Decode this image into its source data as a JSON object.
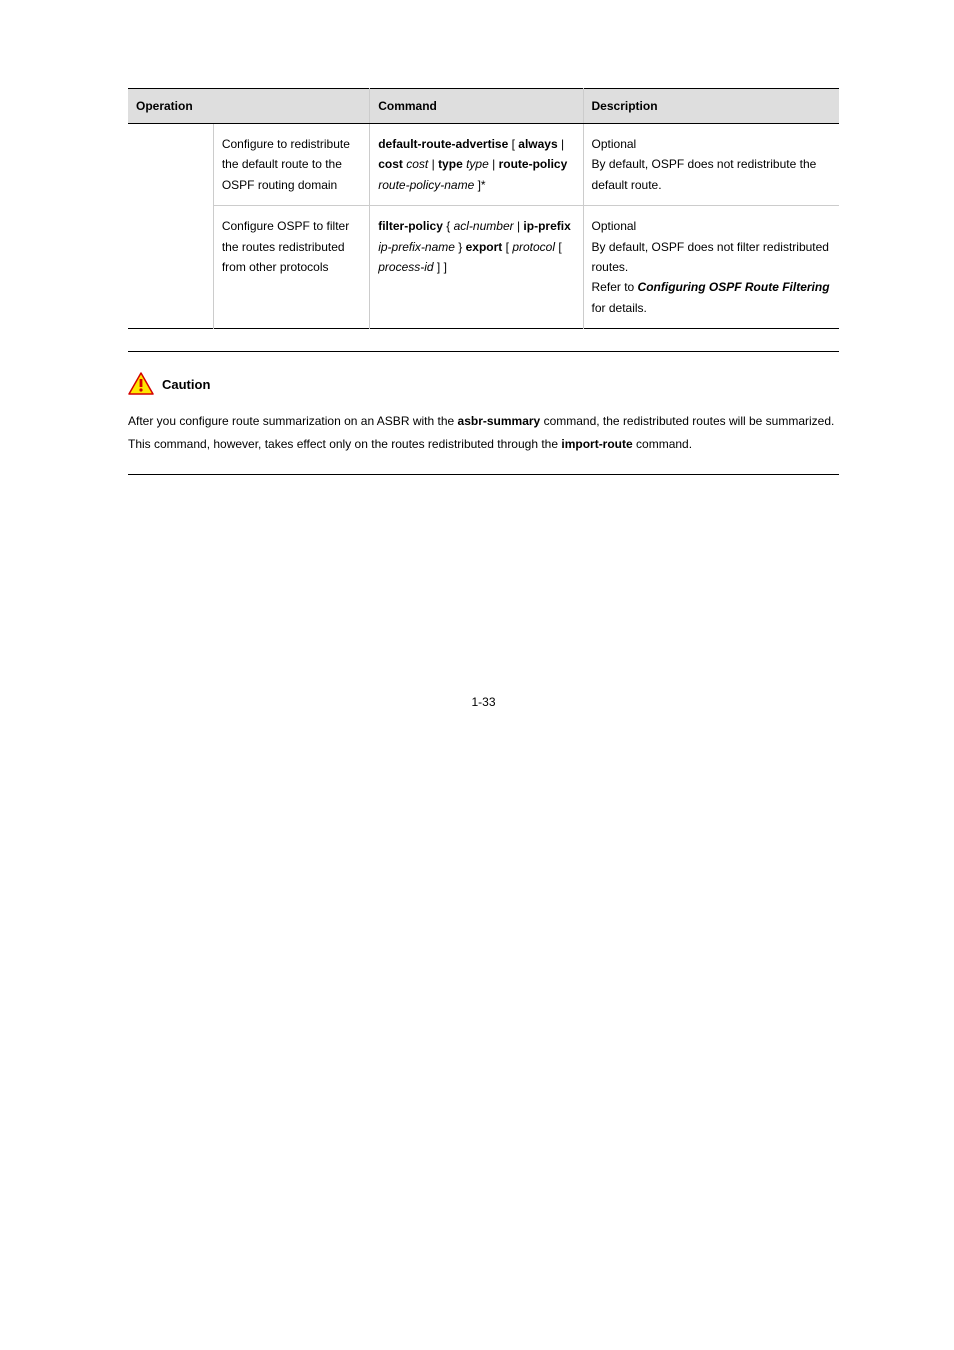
{
  "table": {
    "columns": [
      "Operation",
      "Command",
      "Description"
    ],
    "rows": [
      {
        "cells": [
          {
            "html": ""
          },
          {
            "html": "Configure to redistribute the default route to the OSPF routing domain"
          },
          {
            "html": "<span class='b'>default-route-advertise</span> [ <span class='b'>always</span> | <span class='b'>cost</span> <span class='i'>cost</span> | <span class='b'>type</span> <span class='i'>type</span> | <span class='b'>route-policy</span> <span class='i'>route-policy-name</span> ]*"
          },
          {
            "html": "Optional<br>By default, OSPF does not redistribute the default route."
          }
        ]
      },
      {
        "cells": [
          {
            "html": ""
          },
          {
            "html": "Configure OSPF to filter the routes redistributed from other protocols"
          },
          {
            "html": "<span class='b'>filter-policy</span> { <span class='i'>acl-number</span> | <span class='b'>ip-prefix</span> <span class='i'>ip-prefix-name</span> } <span class='b'>export</span> [ <span class='i'>protocol</span> [ <span class='i'>process-id</span> ] ]"
          },
          {
            "html": "Optional<br>By default, OSPF does not filter redistributed routes.<br>Refer to <span class='bi'>Configuring OSPF Route Filtering</span> for details."
          }
        ],
        "innerBorder": true
      }
    ],
    "colWidths": [
      "12%",
      "22%",
      "30%",
      "36%"
    ]
  },
  "caution": {
    "label": "Caution",
    "body": "After you configure route summarization on an ASBR with the <span class='b'>asbr-summary</span> command, the redistributed routes will be summarized. This command, however, takes effect only on the routes redistributed through the <span class='b'>import-route</span> command."
  },
  "pageNumber": "1-33"
}
